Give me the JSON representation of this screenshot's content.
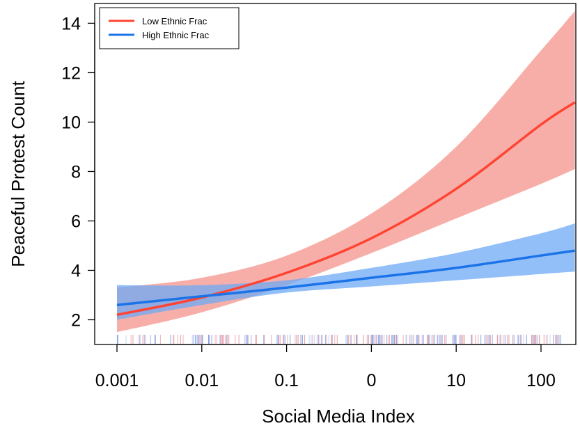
{
  "chart_data": {
    "type": "line",
    "title": "",
    "xlabel": "Social Media Index",
    "ylabel": "Peaceful Protest Count",
    "x_tick_labels": [
      "0.001",
      "0.01",
      "0.1",
      "0",
      "10",
      "100"
    ],
    "y_ticks": [
      2,
      4,
      6,
      8,
      10,
      12,
      14
    ],
    "y_tick_labels": [
      "2",
      "4",
      "6",
      "8",
      "10",
      "12",
      "14"
    ],
    "ylim": [
      1,
      14.8
    ],
    "grid": false,
    "legend_position": "top-left",
    "rug_at_bottom": true,
    "series": [
      {
        "name": "Low Ethnic Frac",
        "color": "#ff4433",
        "band_color": "#f7a099",
        "x_tick_index": [
          0,
          1,
          2,
          3,
          4,
          5,
          5.4
        ],
        "y": [
          2.2,
          2.9,
          3.9,
          5.3,
          7.3,
          9.9,
          10.8
        ],
        "lower": [
          1.5,
          2.3,
          3.4,
          4.7,
          6.1,
          7.5,
          8.1
        ],
        "upper": [
          3.3,
          3.7,
          4.6,
          6.3,
          9.0,
          12.9,
          14.5
        ]
      },
      {
        "name": "High Ethnic Frac",
        "color": "#1a73e8",
        "band_color": "#6eaaf5",
        "x_tick_index": [
          0,
          1,
          2,
          3,
          4,
          5,
          5.4
        ],
        "y": [
          2.6,
          2.95,
          3.3,
          3.7,
          4.1,
          4.6,
          4.8
        ],
        "lower": [
          2.0,
          2.6,
          3.1,
          3.35,
          3.6,
          3.85,
          3.95
        ],
        "upper": [
          3.4,
          3.4,
          3.6,
          4.1,
          4.7,
          5.5,
          5.9
        ]
      }
    ]
  }
}
